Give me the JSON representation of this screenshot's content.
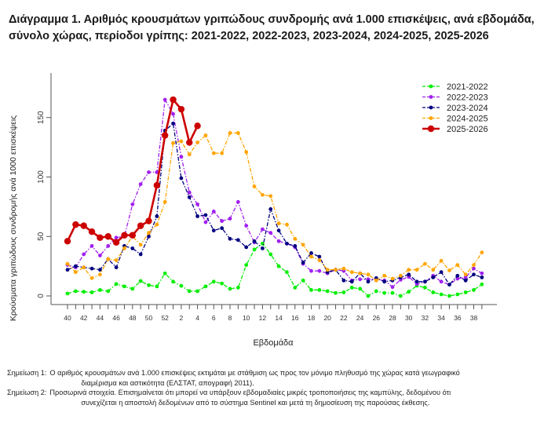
{
  "title_line1": "Διάγραμμα 1. Αριθμός κρουσμάτων γριπώδους συνδρομής ανά 1.000 επισκέψεις, ανά εβδομάδα,",
  "title_line2": "σύνολο χώρας, περίοδοι γρίπης: 2021-2022, 2022-2023, 2023-2024, 2024-2025, 2025-2026",
  "notes": [
    {
      "label": "Σημείωση 1:",
      "line1": "Ο αριθμός κρουσμάτων ανά 1.000 επισκέψεις εκτιμάται με στάθμιση ως προς τον μόνιμο πληθυσμό της χώρας κατά γεωγραφικό",
      "line2": "διαμέρισμα και αστικότητα (ΕΛΣΤΑΤ, απογραφή 2011)."
    },
    {
      "label": "Σημείωση 2:",
      "line1": "Προσωρινά στοιχεία. Επισημαίνεται ότι μπορεί να υπάρξουν εβδομαδιαίες μικρές τροποποιήσεις της καμπύλης, δεδομένου ότι",
      "line2": "συνεχίζεται η αποστολή δεδομένων από το σύστημα Sentinel και μετά τη δημοσίευση της παρούσας έκθεσης."
    }
  ],
  "chart_data": {
    "type": "line",
    "title": "Διάγραμμα 1. Αριθμός κρουσμάτων γριπώδους συνδρομής ανά 1.000 επισκέψεις, ανά εβδομάδα, σύνολο χώρας, περίοδοι γρίπης: 2021-2022, 2022-2023, 2023-2024, 2024-2025, 2025-2026",
    "xlabel": "Εβδομάδα",
    "ylabel": "Κρούσματα γριπώδους συνδρομής ανά 1000 επισκέψεις",
    "x": [
      40,
      41,
      42,
      43,
      44,
      45,
      46,
      47,
      48,
      49,
      50,
      51,
      52,
      1,
      2,
      3,
      4,
      5,
      6,
      7,
      8,
      9,
      10,
      11,
      12,
      13,
      14,
      15,
      16,
      17,
      18,
      19,
      20,
      21,
      22,
      23,
      24,
      25,
      26,
      27,
      28,
      29,
      30,
      31,
      32,
      33,
      34,
      35,
      36,
      37,
      38,
      39
    ],
    "xtick_labels": [
      "40",
      "42",
      "44",
      "46",
      "48",
      "50",
      "52",
      "2",
      "4",
      "6",
      "8",
      "10",
      "12",
      "14",
      "16",
      "18",
      "20",
      "22",
      "24",
      "26",
      "28",
      "30",
      "32",
      "34",
      "36",
      "38"
    ],
    "yticks": [
      0,
      50,
      100,
      150
    ],
    "ylim": [
      0,
      180
    ],
    "grid": false,
    "legend_position": "top-right",
    "series": [
      {
        "name": "2021-2022",
        "color": "#00ee00",
        "style": "dashdot",
        "values": [
          2,
          4,
          3.5,
          3,
          5,
          4,
          10,
          8,
          6,
          12.5,
          9,
          8,
          19,
          12,
          8.5,
          4,
          4,
          8,
          12,
          10.5,
          6,
          7,
          26,
          39,
          44,
          35,
          25,
          20,
          7,
          13,
          5,
          5,
          4,
          2.5,
          3,
          7,
          6,
          0,
          4,
          2.5,
          2.5,
          0,
          3.5,
          8.6,
          7,
          3,
          1.3,
          0,
          1.3,
          3,
          5,
          9.7
        ]
      },
      {
        "name": "2022-2023",
        "color": "#a020f0",
        "style": "dashdot",
        "values": [
          26,
          24,
          35,
          42,
          34,
          42,
          49,
          50,
          77,
          94,
          104,
          104,
          165,
          153,
          117,
          87,
          77,
          62,
          71,
          63,
          65,
          79,
          59,
          45,
          56,
          53,
          46,
          44,
          41,
          27,
          21,
          21,
          19,
          22,
          21,
          13,
          14,
          14,
          14,
          13,
          7.5,
          13.6,
          16,
          10,
          12,
          17,
          12,
          9.5,
          14.5,
          15.6,
          23,
          19
        ]
      },
      {
        "name": "2023-2024",
        "color": "#000080",
        "style": "dashdot",
        "values": [
          22,
          25,
          24,
          23,
          22,
          31,
          24,
          42,
          40,
          35,
          50,
          67,
          139,
          145,
          99,
          83,
          67,
          68,
          55,
          57,
          48,
          47,
          41,
          46,
          40,
          73,
          55,
          44,
          42,
          28,
          36,
          33,
          20,
          22,
          13,
          12,
          19,
          12,
          15,
          12,
          13,
          15.6,
          18,
          12,
          12,
          15.6,
          20,
          9.5,
          17,
          13,
          18,
          15.6
        ]
      },
      {
        "name": "2024-2025",
        "color": "#ffa500",
        "style": "dashdot",
        "values": [
          27,
          20,
          24,
          15,
          18,
          31,
          30,
          40,
          50,
          43,
          53,
          60,
          79,
          128.5,
          130,
          119,
          129,
          135,
          120,
          120,
          137,
          137,
          121,
          92,
          85,
          84,
          61,
          60,
          48,
          43,
          33,
          30,
          22,
          22,
          23,
          20,
          19,
          18,
          13,
          17,
          14.5,
          17,
          22,
          22,
          27,
          22,
          29.5,
          21.5,
          26,
          18,
          26,
          36.5
        ]
      },
      {
        "name": "2025-2026",
        "color": "#cc0000",
        "style": "solid",
        "values": [
          46,
          60,
          59,
          54,
          49,
          50,
          45,
          51,
          51,
          59,
          63,
          93,
          135,
          165,
          157,
          129,
          143
        ]
      }
    ]
  }
}
